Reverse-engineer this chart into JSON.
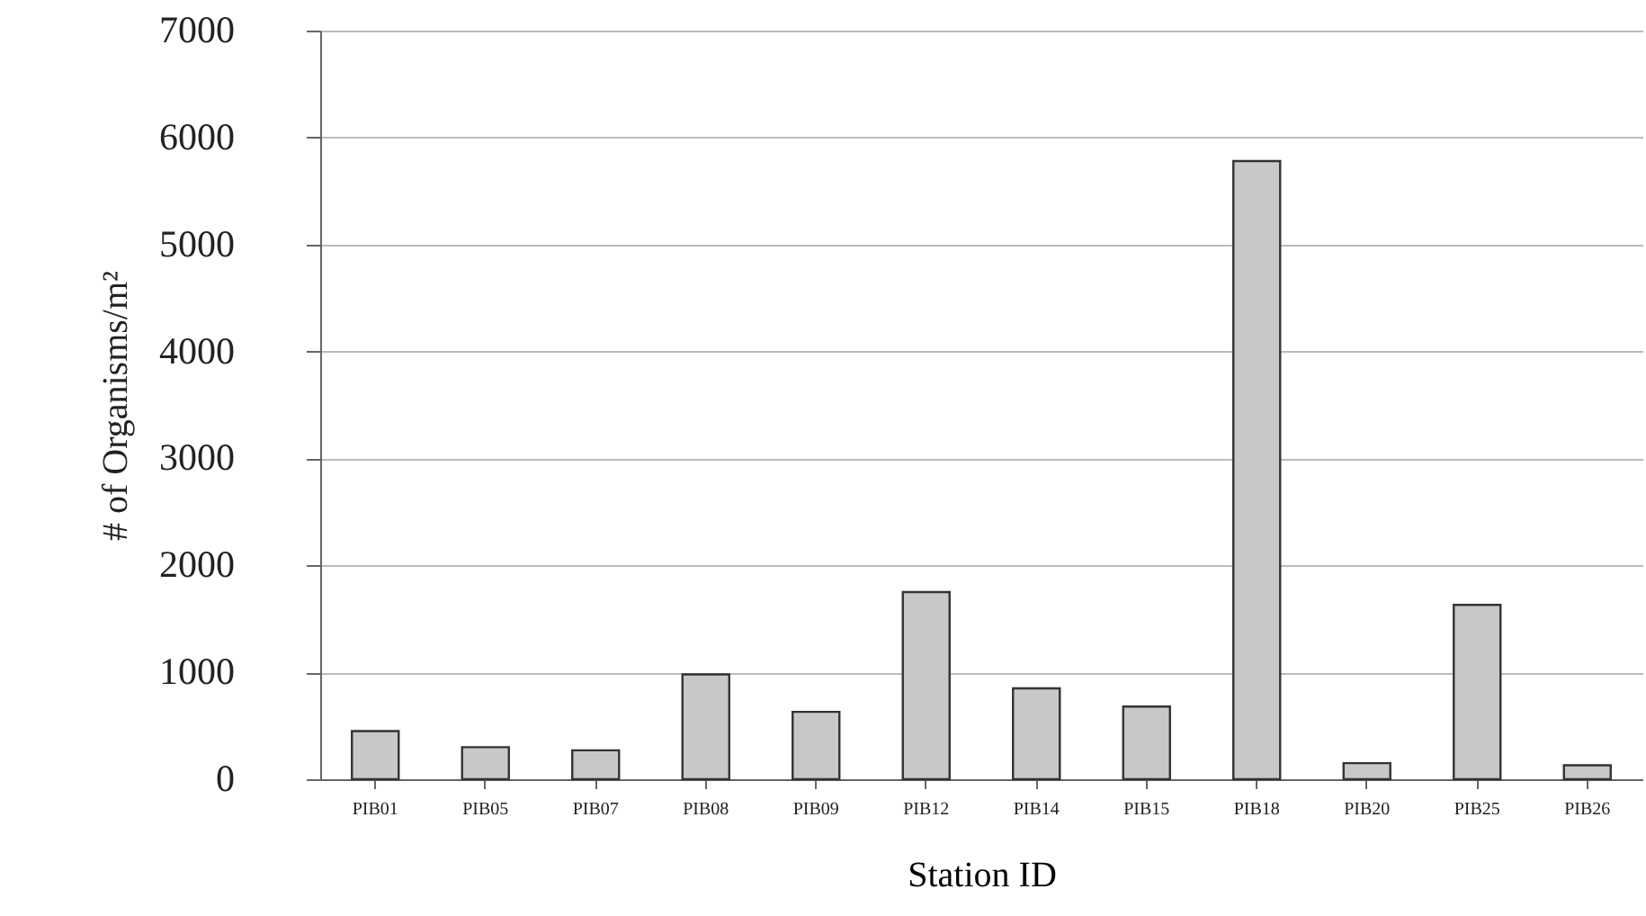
{
  "chart_data": {
    "type": "bar",
    "xlabel": "Station ID",
    "ylabel": "# of Organisms/m²",
    "categories": [
      "PIB01",
      "PIB05",
      "PIB07",
      "PIB08",
      "PIB09",
      "PIB12",
      "PIB14",
      "PIB15",
      "PIB18",
      "PIB20",
      "PIB25",
      "PIB26"
    ],
    "values": [
      450,
      300,
      270,
      980,
      630,
      1750,
      850,
      680,
      5780,
      150,
      1630,
      130
    ],
    "color": "#c8c8c8",
    "ylim": [
      0,
      7000
    ],
    "yticks": [
      0,
      1000,
      2000,
      3000,
      4000,
      5000,
      6000,
      7000
    ],
    "grid": "y"
  }
}
